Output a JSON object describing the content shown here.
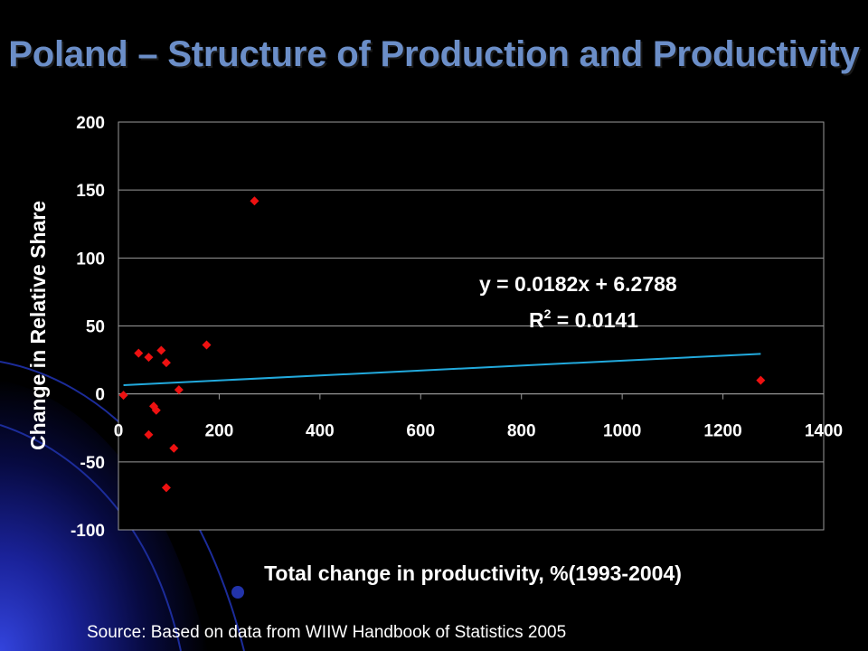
{
  "title": "Poland – Structure of Production and Productivity",
  "source": "Source: Based on data from WIIW Handbook of Statistics 2005",
  "chart_data": {
    "type": "scatter",
    "xlabel": "Total change in productivity, %(1993-2004)",
    "ylabel": "Change in Relative Share",
    "xlim": [
      0,
      1400
    ],
    "ylim": [
      -100,
      200
    ],
    "x_ticks": [
      0,
      200,
      400,
      600,
      800,
      1000,
      1200,
      1400
    ],
    "y_ticks": [
      -100,
      -50,
      0,
      50,
      100,
      150,
      200
    ],
    "grid": "horizontal",
    "points": [
      {
        "x": 270,
        "y": 142
      },
      {
        "x": 175,
        "y": 36
      },
      {
        "x": 40,
        "y": 30
      },
      {
        "x": 85,
        "y": 32
      },
      {
        "x": 60,
        "y": 27
      },
      {
        "x": 95,
        "y": 23
      },
      {
        "x": 120,
        "y": 3
      },
      {
        "x": 10,
        "y": -1
      },
      {
        "x": 70,
        "y": -9
      },
      {
        "x": 75,
        "y": -12
      },
      {
        "x": 60,
        "y": -30
      },
      {
        "x": 110,
        "y": -40
      },
      {
        "x": 95,
        "y": -69
      },
      {
        "x": 1275,
        "y": 10
      }
    ],
    "trendline": {
      "slope": 0.0182,
      "intercept": 6.2788,
      "x_range": [
        10,
        1275
      ],
      "equation_text": "y = 0.0182x + 6.2788",
      "r2_label": "R",
      "r2_sup": "2",
      "r2_value": " = 0.0141",
      "color": "#22AADD"
    },
    "marker_color": "#EE1111"
  }
}
